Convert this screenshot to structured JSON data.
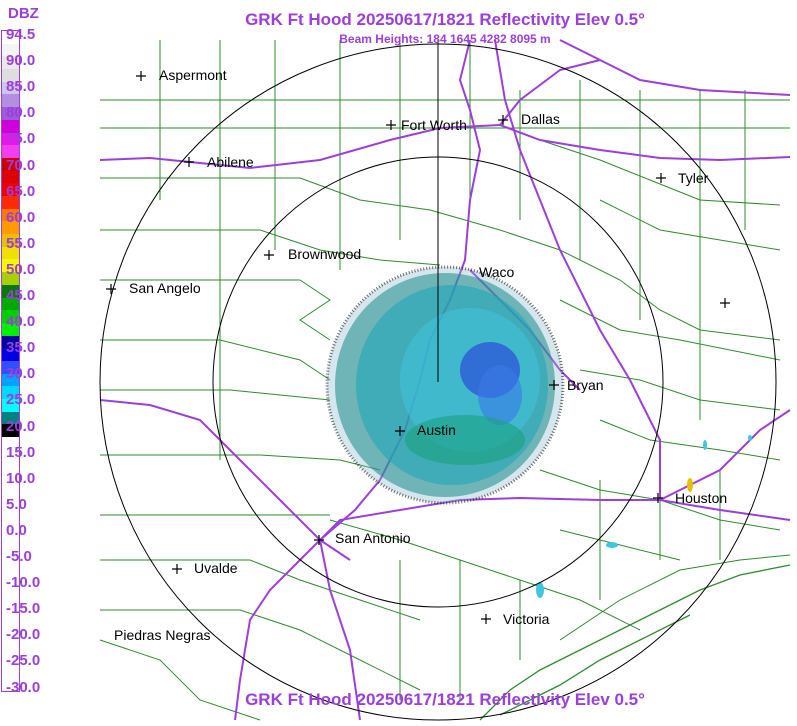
{
  "header": {
    "title": "GRK Ft Hood 20250617/1821 Reflectivity Elev 0.5°",
    "subtitle": "Beam Heights: 184 1645 4282 8095 m",
    "footer_title": "GRK Ft Hood 20250617/1821 Reflectivity Elev 0.5°"
  },
  "legend": {
    "title": "DBZ",
    "labels": [
      "94.5",
      "90.0",
      "85.0",
      "80.0",
      "75.0",
      "70.0",
      "65.0",
      "60.0",
      "55.0",
      "50.0",
      "45.0",
      "40.0",
      "35.0",
      "30.0",
      "25.0",
      "20.0",
      "15.0",
      "10.0",
      "5.0",
      "0.0",
      "-5.0",
      "-10.0",
      "-15.0",
      "-20.0",
      "-25.0",
      "-30.0"
    ],
    "colors": [
      "#ffffff",
      "#f4f4f4",
      "#e9e9e9",
      "#dedede",
      "#d1c4ea",
      "#b48ee0",
      "#9b5cd9",
      "#d000d8",
      "#e816e8",
      "#f03ef0",
      "#cc0000",
      "#dd0000",
      "#f00000",
      "#ff2a00",
      "#ff7a00",
      "#ff9a00",
      "#e8c000",
      "#f0e000",
      "#f7f700",
      "#a8d000",
      "#007a00",
      "#00a800",
      "#00d000",
      "#00f000",
      "#0000a0",
      "#0000e0",
      "#3050ff",
      "#00a0ff",
      "#00d8ff",
      "#00ffff",
      "#008080",
      "#000000",
      "#ffffff",
      "#ffffff",
      "#ffffff",
      "#ffffff",
      "#ffffff",
      "#ffffff",
      "#ffffff",
      "#ffffff",
      "#ffffff",
      "#ffffff",
      "#ffffff",
      "#ffffff",
      "#ffffff",
      "#ffffff",
      "#ffffff",
      "#ffffff",
      "#ffffff",
      "#ffffff",
      "#ffffff",
      "#ffffff"
    ]
  },
  "cities": [
    {
      "name": "Aspermont"
    },
    {
      "name": "Fort Worth"
    },
    {
      "name": "Dallas"
    },
    {
      "name": "Abilene"
    },
    {
      "name": "Tyler"
    },
    {
      "name": "Brownwood"
    },
    {
      "name": "Waco"
    },
    {
      "name": "San Angelo"
    },
    {
      "name": "Bryan"
    },
    {
      "name": "Austin"
    },
    {
      "name": "Houston"
    },
    {
      "name": "San Antonio"
    },
    {
      "name": "Uvalde"
    },
    {
      "name": "Victoria"
    },
    {
      "name": "Piedras Negras"
    }
  ],
  "colors": {
    "title": "#9b3fd8",
    "county_lines": "#2e8b2e",
    "highways": "#9b3fd8",
    "range_rings": "#000000"
  }
}
